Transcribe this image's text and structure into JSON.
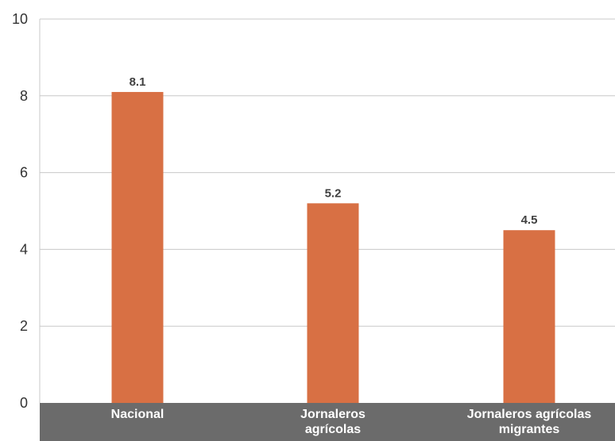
{
  "chart_data": {
    "type": "bar",
    "categories": [
      [
        "Nacional"
      ],
      [
        "Jornaleros",
        "agrícolas"
      ],
      [
        "Jornaleros agrícolas",
        "migrantes"
      ]
    ],
    "values": [
      8.1,
      5.2,
      4.5
    ],
    "value_labels": [
      "8.1",
      "5.2",
      "4.5"
    ],
    "ylim": [
      0,
      10
    ],
    "yticks": [
      0,
      2,
      4,
      6,
      8,
      10
    ],
    "grid": true,
    "colors": {
      "bar": "#D87044",
      "axis_band": "#6B6B6B",
      "grid": "#C8C8C8"
    }
  }
}
